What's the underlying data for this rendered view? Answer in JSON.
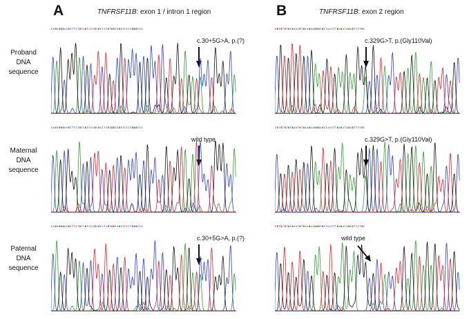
{
  "panels": [
    {
      "letter": "A",
      "gene": "TNFRSF11B",
      "region": ": exon 1 / intron 1 region",
      "sequence": "CAGCGGGACGCTTCTGTCGTCCCGCGCCTCGTGGTAGATCCCTGGGCCA",
      "rows": [
        {
          "annotation": "c.30+5G>A, p.(?)",
          "arrow": "down"
        },
        {
          "annotation": "wild type",
          "arrow": "down"
        },
        {
          "annotation": "c.30+5G>A, p.(?)",
          "arrow": "down"
        }
      ]
    },
    {
      "letter": "B",
      "gene": "TNFRSF11B",
      "region": ": exon 2 region",
      "sequence": "CGTGTGTGCGAATGTGAAGAAGGGCGCTACCTTGAGATAGAGTTCTGC",
      "rows": [
        {
          "annotation": "c.329G>T, p.(Gly110Val)",
          "arrow": "down"
        },
        {
          "annotation": "c.329G>T, p.(Gly110Val)",
          "arrow": "down"
        },
        {
          "annotation": "wild type",
          "arrow": "diagonal"
        }
      ]
    }
  ],
  "row_labels": [
    [
      "Proband",
      "DNA",
      "sequence"
    ],
    [
      "Maternal",
      "DNA",
      "sequence"
    ],
    [
      "Paternal",
      "DNA",
      "sequence"
    ]
  ],
  "colors": {
    "A": "#2e9e2e",
    "C": "#2a3fd6",
    "G": "#111111",
    "T": "#e0202a",
    "baseline": "#555555"
  }
}
